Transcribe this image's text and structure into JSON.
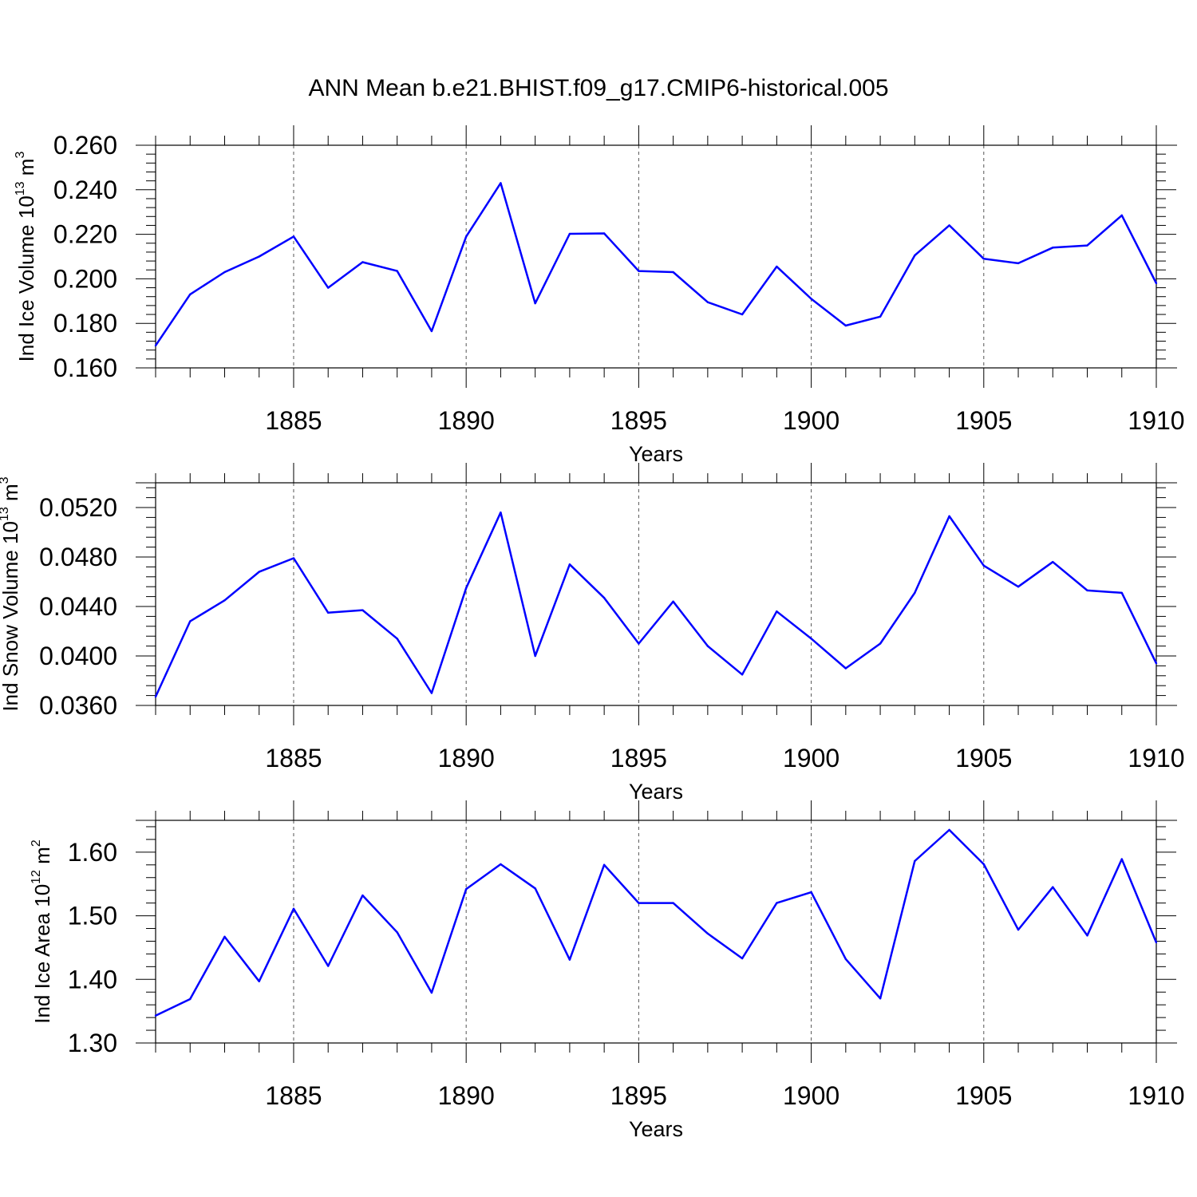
{
  "title": "ANN Mean b.e21.BHIST.f09_g17.CMIP6-historical.005",
  "chart_data": [
    {
      "type": "line",
      "ylabel": {
        "text": "Ind Ice Volume 10",
        "exp": "13",
        "unit": " m",
        "unit_exp": "3"
      },
      "xlabel": "Years",
      "xlim": [
        1881,
        1910
      ],
      "ylim": [
        0.16,
        0.26
      ],
      "ytick_values": [
        0.16,
        0.18,
        0.2,
        0.22,
        0.24,
        0.26
      ],
      "ytick_labels": [
        "0.160",
        "0.180",
        "0.200",
        "0.220",
        "0.240",
        "0.260"
      ],
      "xticks": [
        1885,
        1890,
        1895,
        1900,
        1905,
        1910
      ],
      "xtick_labels": [
        "1885",
        "1890",
        "1895",
        "1900",
        "1905",
        "1910"
      ],
      "grid": "vertical dashed at major x ticks",
      "line_color": "#0000ff",
      "x": [
        1881,
        1882,
        1883,
        1884,
        1885,
        1886,
        1887,
        1888,
        1889,
        1890,
        1891,
        1892,
        1893,
        1894,
        1895,
        1896,
        1897,
        1898,
        1899,
        1900,
        1901,
        1902,
        1903,
        1904,
        1905,
        1906,
        1907,
        1908,
        1909,
        1910
      ],
      "values": [
        0.17,
        0.193,
        0.203,
        0.21,
        0.219,
        0.196,
        0.2075,
        0.2035,
        0.1765,
        0.219,
        0.243,
        0.189,
        0.2202,
        0.2204,
        0.2035,
        0.203,
        0.1895,
        0.184,
        0.2055,
        0.191,
        0.179,
        0.183,
        0.2105,
        0.224,
        0.209,
        0.207,
        0.214,
        0.215,
        0.2285,
        0.198
      ]
    },
    {
      "type": "line",
      "ylabel": {
        "text": "Ind Snow Volume 10",
        "exp": "13",
        "unit": " m",
        "unit_exp": "3"
      },
      "xlabel": "Years",
      "xlim": [
        1881,
        1910
      ],
      "ylim": [
        0.036,
        0.054
      ],
      "ytick_values": [
        0.036,
        0.04,
        0.044,
        0.048,
        0.052
      ],
      "ytick_labels": [
        "0.0360",
        "0.0400",
        "0.0440",
        "0.0480",
        "0.0520"
      ],
      "xticks": [
        1885,
        1890,
        1895,
        1900,
        1905,
        1910
      ],
      "xtick_labels": [
        "1885",
        "1890",
        "1895",
        "1900",
        "1905",
        "1910"
      ],
      "grid": "vertical dashed at major x ticks",
      "line_color": "#0000ff",
      "x": [
        1881,
        1882,
        1883,
        1884,
        1885,
        1886,
        1887,
        1888,
        1889,
        1890,
        1891,
        1892,
        1893,
        1894,
        1895,
        1896,
        1897,
        1898,
        1899,
        1900,
        1901,
        1902,
        1903,
        1904,
        1905,
        1906,
        1907,
        1908,
        1909,
        1910
      ],
      "values": [
        0.0367,
        0.0428,
        0.0445,
        0.0468,
        0.0479,
        0.0435,
        0.0437,
        0.0414,
        0.037,
        0.0455,
        0.0516,
        0.04,
        0.0474,
        0.0447,
        0.041,
        0.0444,
        0.0408,
        0.0385,
        0.0436,
        0.0414,
        0.039,
        0.041,
        0.0451,
        0.0513,
        0.0473,
        0.0456,
        0.0476,
        0.0453,
        0.0451,
        0.0394
      ]
    },
    {
      "type": "line",
      "ylabel": {
        "text": "Ind Ice Area 10",
        "exp": "12",
        "unit": " m",
        "unit_exp": "2"
      },
      "xlabel": "Years",
      "xlim": [
        1881,
        1910
      ],
      "ylim": [
        1.3,
        1.65
      ],
      "ytick_values": [
        1.3,
        1.4,
        1.5,
        1.6
      ],
      "ytick_labels": [
        "1.30",
        "1.40",
        "1.50",
        "1.60"
      ],
      "xticks": [
        1885,
        1890,
        1895,
        1900,
        1905,
        1910
      ],
      "xtick_labels": [
        "1885",
        "1890",
        "1895",
        "1900",
        "1905",
        "1910"
      ],
      "grid": "vertical dashed at major x ticks",
      "line_color": "#0000ff",
      "x": [
        1881,
        1882,
        1883,
        1884,
        1885,
        1886,
        1887,
        1888,
        1889,
        1890,
        1891,
        1892,
        1893,
        1894,
        1895,
        1896,
        1897,
        1898,
        1899,
        1900,
        1901,
        1902,
        1903,
        1904,
        1905,
        1906,
        1907,
        1908,
        1909,
        1910
      ],
      "values": [
        1.343,
        1.369,
        1.467,
        1.397,
        1.511,
        1.421,
        1.532,
        1.474,
        1.379,
        1.542,
        1.581,
        1.543,
        1.431,
        1.58,
        1.52,
        1.52,
        1.472,
        1.433,
        1.52,
        1.537,
        1.432,
        1.37,
        1.586,
        1.635,
        1.581,
        1.478,
        1.545,
        1.469,
        1.589,
        1.458
      ]
    }
  ]
}
